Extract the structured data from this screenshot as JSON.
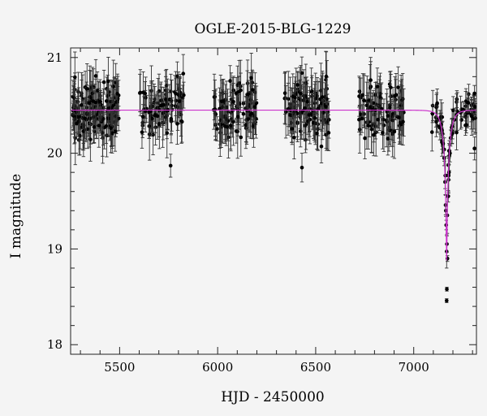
{
  "chart_data": {
    "type": "scatter",
    "title": "OGLE-2015-BLG-1229",
    "xlabel": "HJD - 2450000",
    "ylabel": "I magnitude",
    "xlim": [
      5250,
      7320
    ],
    "ylim": [
      21.1,
      17.9
    ],
    "y_inverted": true,
    "x_ticks": [
      5500,
      6000,
      6500,
      7000
    ],
    "y_ticks": [
      18,
      19,
      20,
      21
    ],
    "x_minor_step": 100,
    "y_minor_step": 0.2,
    "grid": false,
    "legend": "none",
    "colors": {
      "points": "#000000",
      "model": "#cc33cc",
      "background": "#f4f4f4"
    },
    "seasons": [
      {
        "start": 5260,
        "end": 5500,
        "count": 150,
        "base_mag": 20.45,
        "scatter": 0.25,
        "err": [
          0.12,
          0.28
        ]
      },
      {
        "start": 5600,
        "end": 5830,
        "count": 90,
        "base_mag": 20.45,
        "scatter": 0.24,
        "err": [
          0.12,
          0.28
        ]
      },
      {
        "start": 5980,
        "end": 6200,
        "count": 100,
        "base_mag": 20.45,
        "scatter": 0.24,
        "err": [
          0.12,
          0.28
        ]
      },
      {
        "start": 6340,
        "end": 6570,
        "count": 105,
        "base_mag": 20.45,
        "scatter": 0.25,
        "err": [
          0.12,
          0.3
        ]
      },
      {
        "start": 6720,
        "end": 6950,
        "count": 90,
        "base_mag": 20.45,
        "scatter": 0.23,
        "err": [
          0.12,
          0.28
        ]
      },
      {
        "start": 7080,
        "end": 7315,
        "count": 70,
        "base_mag": 20.45,
        "scatter": 0.15,
        "err": [
          0.06,
          0.2
        ]
      }
    ],
    "points": [
      {
        "x": 7168,
        "y": 18.46,
        "err": 0.02
      },
      {
        "x": 7169,
        "y": 18.58,
        "err": 0.02
      },
      {
        "x": 7172,
        "y": 18.9,
        "err": 0.03
      },
      {
        "x": 7166,
        "y": 19.25,
        "err": 0.05
      },
      {
        "x": 7164,
        "y": 19.4,
        "err": 0.06
      },
      {
        "x": 7176,
        "y": 19.55,
        "err": 0.06
      },
      {
        "x": 7160,
        "y": 19.7,
        "err": 0.07
      },
      {
        "x": 7180,
        "y": 19.8,
        "err": 0.08
      },
      {
        "x": 7155,
        "y": 19.95,
        "err": 0.08
      },
      {
        "x": 7150,
        "y": 20.1,
        "err": 0.1
      },
      {
        "x": 7185,
        "y": 20.0,
        "err": 0.09
      },
      {
        "x": 7195,
        "y": 20.2,
        "err": 0.1
      },
      {
        "x": 7140,
        "y": 20.3,
        "err": 0.12
      },
      {
        "x": 7208,
        "y": 20.35,
        "err": 0.12
      },
      {
        "x": 5760,
        "y": 19.87,
        "err": 0.12
      },
      {
        "x": 6430,
        "y": 19.85,
        "err": 0.15
      },
      {
        "x": 7310,
        "y": 20.05,
        "err": 0.12
      }
    ],
    "model": {
      "baseline": 20.45,
      "peak_x": 7168,
      "peak_mag": 18.88,
      "u0": 0.05,
      "tE": 30
    }
  }
}
